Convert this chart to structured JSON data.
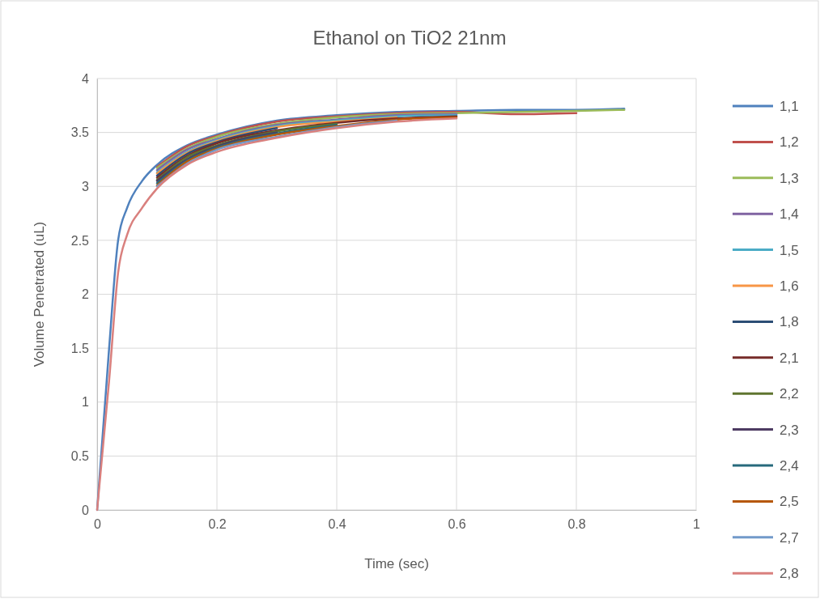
{
  "chart_data": {
    "type": "line",
    "title": "Ethanol on TiO2 21nm",
    "xlabel": "Time (sec)",
    "ylabel": "Volume Penetrated (uL)",
    "x": [
      0,
      0.02,
      0.035,
      0.05,
      0.075,
      0.1,
      0.15,
      0.2,
      0.3,
      0.4,
      0.5,
      0.6,
      0.7,
      0.8,
      0.88
    ],
    "series": [
      {
        "name": "1,1",
        "color": "#4f81bd",
        "values": [
          0,
          1.5,
          2.5,
          2.8,
          3.05,
          3.2,
          3.38,
          3.48,
          3.61,
          3.66,
          3.69,
          3.7,
          3.71,
          3.71,
          3.72
        ]
      },
      {
        "name": "1,2",
        "color": "#c0504d",
        "values": [
          null,
          null,
          null,
          null,
          null,
          3.18,
          3.37,
          3.47,
          3.6,
          3.65,
          3.68,
          3.69,
          3.67,
          3.68,
          null
        ]
      },
      {
        "name": "1,3",
        "color": "#9bbb59",
        "values": [
          null,
          null,
          null,
          null,
          null,
          3.17,
          3.35,
          3.46,
          3.58,
          3.64,
          3.67,
          3.68,
          3.69,
          3.7,
          3.71
        ]
      },
      {
        "name": "1,4",
        "color": "#8064a2",
        "values": [
          null,
          null,
          null,
          null,
          null,
          3.15,
          3.34,
          3.44,
          3.57,
          3.62,
          3.66,
          3.67,
          null,
          null,
          null
        ]
      },
      {
        "name": "1,5",
        "color": "#4bacc6",
        "values": [
          null,
          null,
          null,
          null,
          null,
          3.13,
          3.32,
          3.43,
          3.56,
          3.61,
          3.65,
          3.66,
          null,
          null,
          null
        ]
      },
      {
        "name": "1,6",
        "color": "#f79646",
        "values": [
          null,
          null,
          null,
          null,
          null,
          3.12,
          3.31,
          3.42,
          3.55,
          3.6,
          3.64,
          null,
          null,
          null,
          null
        ]
      },
      {
        "name": "1,8",
        "color": "#2c4d75",
        "values": [
          null,
          null,
          null,
          null,
          null,
          3.1,
          3.3,
          3.41,
          3.54,
          null,
          null,
          null,
          null,
          null,
          null
        ]
      },
      {
        "name": "2,1",
        "color": "#772c2a",
        "values": [
          null,
          null,
          null,
          null,
          null,
          3.08,
          3.28,
          3.4,
          3.52,
          3.59,
          3.63,
          3.65,
          null,
          null,
          null
        ]
      },
      {
        "name": "2,2",
        "color": "#5f7530",
        "values": [
          null,
          null,
          null,
          null,
          null,
          3.06,
          3.27,
          3.38,
          3.51,
          3.58,
          null,
          null,
          null,
          null,
          null
        ]
      },
      {
        "name": "2,3",
        "color": "#4d3b62",
        "values": [
          null,
          null,
          null,
          null,
          null,
          3.05,
          3.25,
          3.37,
          3.5,
          null,
          null,
          null,
          null,
          null,
          null
        ]
      },
      {
        "name": "2,4",
        "color": "#276a7c",
        "values": [
          null,
          null,
          null,
          null,
          null,
          3.03,
          3.24,
          3.36,
          3.49,
          3.57,
          null,
          null,
          null,
          null,
          null
        ]
      },
      {
        "name": "2,5",
        "color": "#b65708",
        "values": [
          null,
          null,
          null,
          null,
          null,
          3.01,
          3.23,
          3.35,
          3.48,
          3.56,
          3.62,
          3.64,
          null,
          null,
          null
        ]
      },
      {
        "name": "2,7",
        "color": "#729aca",
        "values": [
          null,
          null,
          null,
          null,
          null,
          3.0,
          3.21,
          3.34,
          3.46,
          3.55,
          3.61,
          null,
          null,
          null,
          null
        ]
      },
      {
        "name": "2,8",
        "color": "#d9807e",
        "values": [
          0,
          1.2,
          2.2,
          2.55,
          2.8,
          2.98,
          3.2,
          3.32,
          3.45,
          3.54,
          3.6,
          3.63,
          null,
          null,
          null
        ]
      }
    ],
    "xlim": [
      0,
      1
    ],
    "xticks": [
      0,
      0.2,
      0.4,
      0.6,
      0.8,
      1
    ],
    "ylim": [
      0,
      4
    ],
    "yticks": [
      0,
      0.5,
      1,
      1.5,
      2,
      2.5,
      3,
      3.5,
      4
    ],
    "grid": true,
    "legend": "right",
    "marker": "none",
    "line_style": "solid"
  }
}
